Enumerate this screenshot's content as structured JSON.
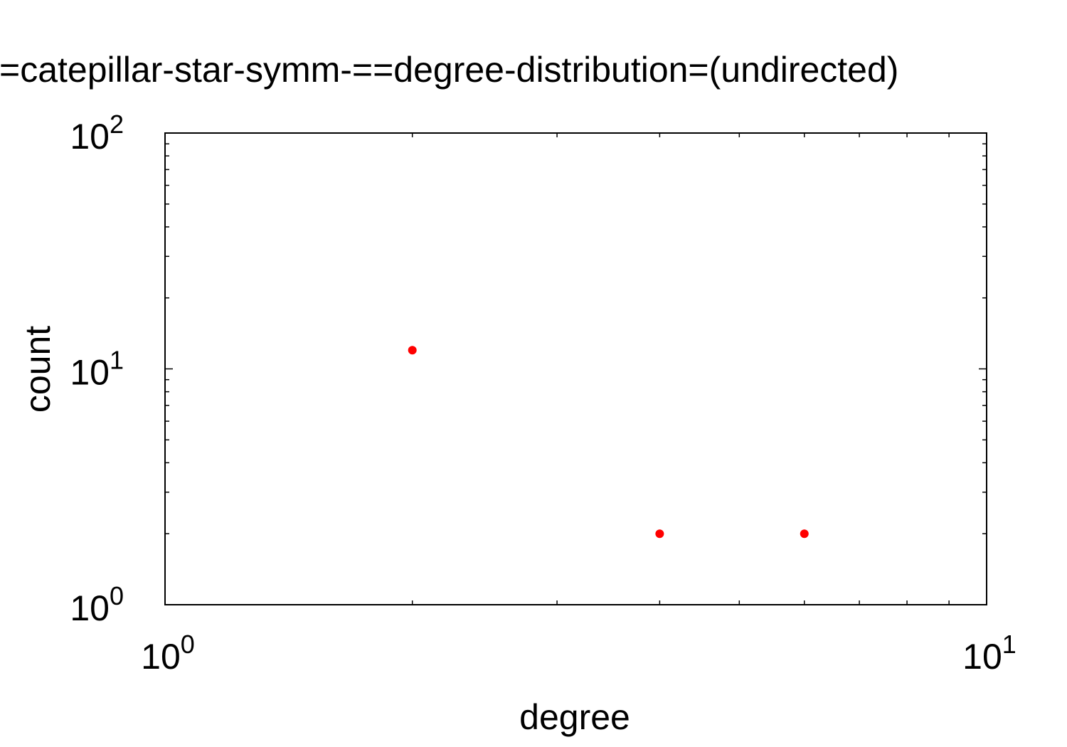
{
  "chart_data": {
    "type": "scatter",
    "title": "=catepillar-star-symm-==degree-distribution=(undirected)",
    "xlabel": "degree",
    "ylabel": "count",
    "x_scale": "log",
    "y_scale": "log",
    "xlim": [
      1,
      10
    ],
    "ylim": [
      1,
      100
    ],
    "x_ticks": [
      {
        "base": "10",
        "exp": "0"
      },
      {
        "base": "10",
        "exp": "1"
      }
    ],
    "y_ticks": [
      {
        "base": "10",
        "exp": "0"
      },
      {
        "base": "10",
        "exp": "1"
      },
      {
        "base": "10",
        "exp": "2"
      }
    ],
    "grid": false,
    "series": [
      {
        "color": "#ff0000",
        "points": [
          {
            "x": 2,
            "y": 12
          },
          {
            "x": 4,
            "y": 2
          },
          {
            "x": 6,
            "y": 2
          }
        ]
      }
    ]
  }
}
